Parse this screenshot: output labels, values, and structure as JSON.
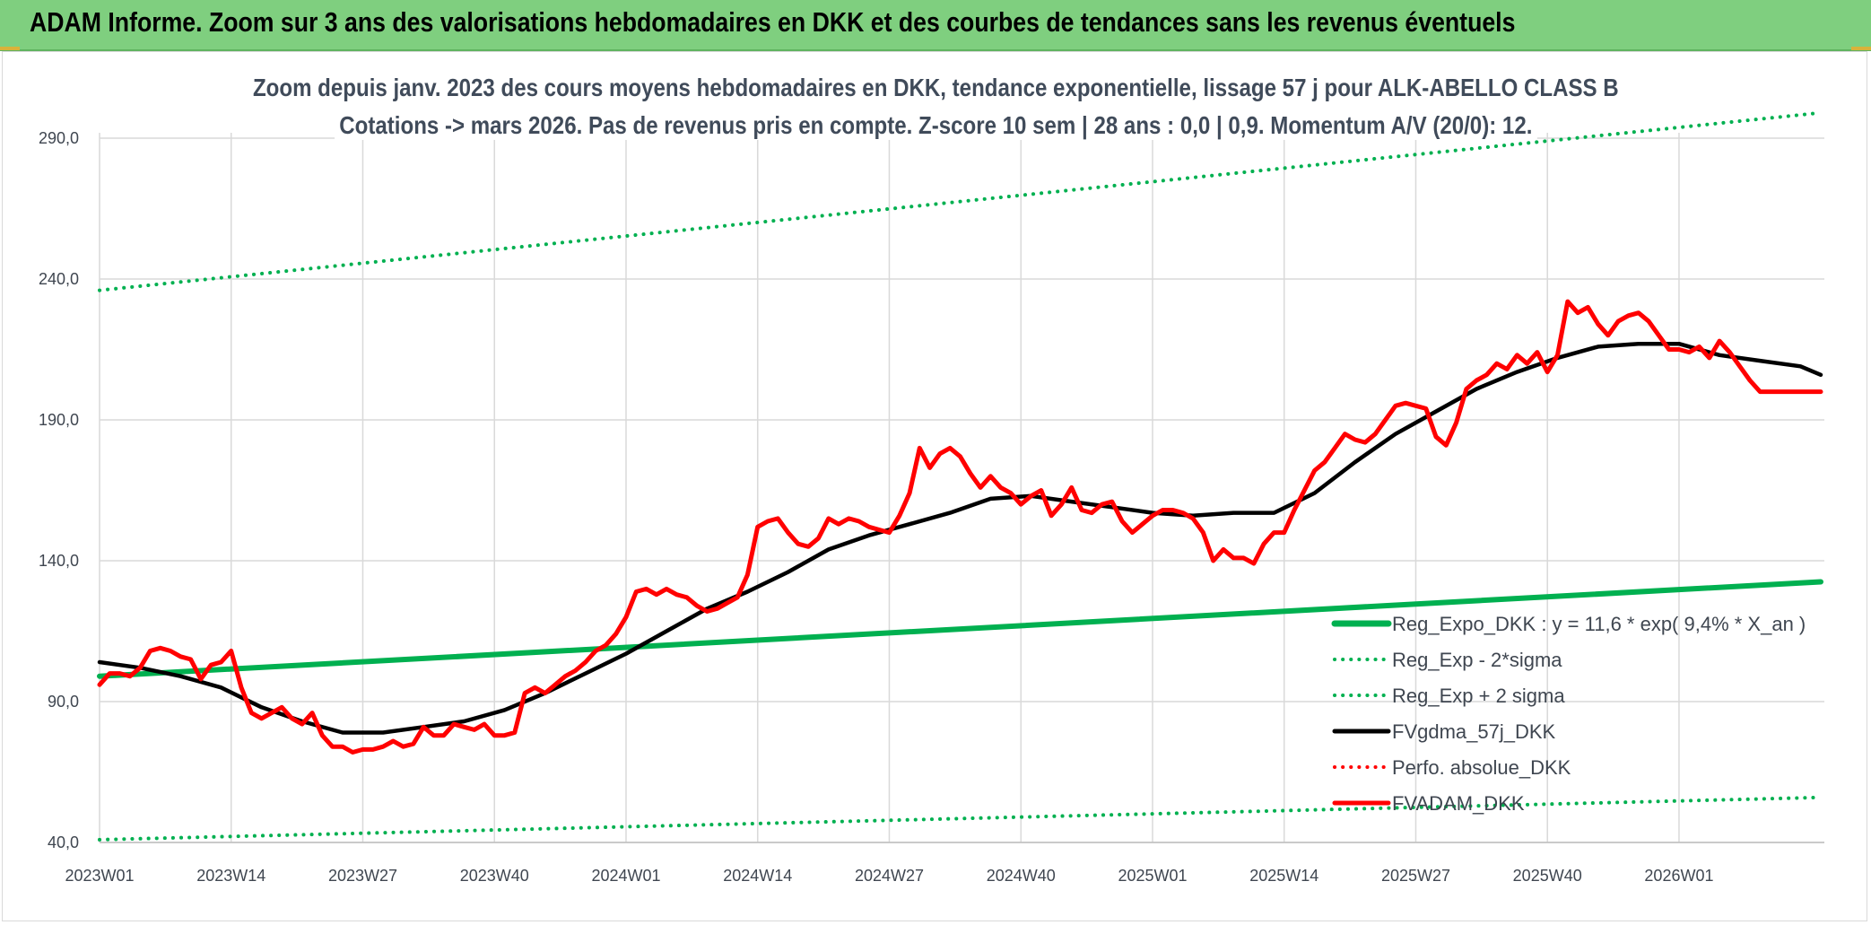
{
  "header": {
    "title": "ADAM Informe. Zoom sur 3 ans des valorisations hebdomadaires en DKK et des courbes de tendances sans les revenus éventuels"
  },
  "chart_data": {
    "type": "line",
    "title": "Zoom depuis janv. 2023 des cours moyens hebdomadaires en DKK, tendance exponentielle, lissage 57 j pour ALK-ABELLO CLASS B",
    "subtitle": "Cotations -> mars 2026. Pas de revenus pris en compte. Z-score 10 sem | 28 ans : 0,0 | 0,9. Momentum A/V (20/0): 12.",
    "xlabel": "",
    "ylabel": "",
    "ylim": [
      40,
      290
    ],
    "yticks": [
      "290,0",
      "240,0",
      "190,0",
      "140,0",
      "90,0",
      "40,0"
    ],
    "ytick_values": [
      290,
      240,
      190,
      140,
      90,
      40
    ],
    "xticks": [
      "2023W01",
      "2023W14",
      "2023W27",
      "2023W40",
      "2024W01",
      "2024W14",
      "2024W27",
      "2024W40",
      "2025W01",
      "2025W14",
      "2025W27",
      "2025W40",
      "2026W01"
    ],
    "xtick_weeks": [
      0,
      13,
      26,
      39,
      52,
      65,
      78,
      91,
      104,
      117,
      130,
      143,
      156
    ],
    "x_max_week": 170,
    "grid": true,
    "legend_position": "bottom-right",
    "series": [
      {
        "name": "Reg_Expo_DKK : y = 11,6 * exp( 9,4% *  X_an )",
        "color": "#00b050",
        "style": "solid-thick",
        "x": [
          0,
          170
        ],
        "y": [
          99,
          132.5
        ]
      },
      {
        "name": "Reg_Exp - 2*sigma",
        "color": "#00b050",
        "style": "dotted",
        "x": [
          0,
          170
        ],
        "y": [
          41,
          56
        ]
      },
      {
        "name": "Reg_Exp + 2 sigma",
        "color": "#00b050",
        "style": "dotted",
        "x": [
          0,
          170
        ],
        "y": [
          236,
          299
        ]
      },
      {
        "name": "FVgdma_57j_DKK",
        "color": "#000000",
        "style": "solid",
        "x": [
          0,
          4,
          8,
          12,
          16,
          20,
          24,
          28,
          32,
          36,
          40,
          44,
          48,
          52,
          56,
          60,
          64,
          68,
          72,
          76,
          80,
          84,
          88,
          92,
          96,
          100,
          104,
          108,
          112,
          116,
          120,
          124,
          128,
          132,
          136,
          140,
          144,
          148,
          152,
          156,
          160,
          164,
          168,
          170
        ],
        "y": [
          104,
          102,
          99,
          95,
          88,
          83,
          79,
          79,
          81,
          83,
          87,
          93,
          100,
          107,
          115,
          123,
          129,
          136,
          144,
          149,
          153,
          157,
          162,
          163,
          161,
          159,
          157,
          156,
          157,
          157,
          164,
          175,
          185,
          193,
          201,
          207,
          212,
          216,
          217,
          217,
          213,
          211,
          209,
          206
        ]
      },
      {
        "name": "Perfo. absolue_DKK",
        "color": "#ff0000",
        "style": "dotted",
        "x": [],
        "y": []
      },
      {
        "name": "FVADAM_DKK",
        "color": "#ff0000",
        "style": "solid-thick",
        "x": [
          0,
          1,
          2,
          3,
          4,
          5,
          6,
          7,
          8,
          9,
          10,
          11,
          12,
          13,
          14,
          15,
          16,
          17,
          18,
          19,
          20,
          21,
          22,
          23,
          24,
          25,
          26,
          27,
          28,
          29,
          30,
          31,
          32,
          33,
          34,
          35,
          36,
          37,
          38,
          39,
          40,
          41,
          42,
          43,
          44,
          45,
          46,
          47,
          48,
          49,
          50,
          51,
          52,
          53,
          54,
          55,
          56,
          57,
          58,
          59,
          60,
          61,
          62,
          63,
          64,
          65,
          66,
          67,
          68,
          69,
          70,
          71,
          72,
          73,
          74,
          75,
          76,
          77,
          78,
          79,
          80,
          81,
          82,
          83,
          84,
          85,
          86,
          87,
          88,
          89,
          90,
          91,
          92,
          93,
          94,
          95,
          96,
          97,
          98,
          99,
          100,
          101,
          102,
          103,
          104,
          105,
          106,
          107,
          108,
          109,
          110,
          111,
          112,
          113,
          114,
          115,
          116,
          117,
          118,
          119,
          120,
          121,
          122,
          123,
          124,
          125,
          126,
          127,
          128,
          129,
          130,
          131,
          132,
          133,
          134,
          135,
          136,
          137,
          138,
          139,
          140,
          141,
          142,
          143,
          144,
          145,
          146,
          147,
          148,
          149,
          150,
          151,
          152,
          153,
          154,
          155,
          156,
          157,
          158,
          159,
          160,
          161,
          162,
          163,
          164,
          165,
          166,
          167,
          168,
          169,
          170
        ],
        "y": [
          96,
          100,
          100,
          99,
          102,
          108,
          109,
          108,
          106,
          105,
          98,
          103,
          104,
          108,
          95,
          86,
          84,
          86,
          88,
          84,
          82,
          86,
          78,
          74,
          74,
          72,
          73,
          73,
          74,
          76,
          74,
          75,
          81,
          78,
          78,
          82,
          81,
          80,
          82,
          78,
          78,
          79,
          93,
          95,
          93,
          96,
          99,
          101,
          104,
          108,
          110,
          114,
          120,
          129,
          130,
          128,
          130,
          128,
          127,
          124,
          122,
          123,
          125,
          127,
          135,
          152,
          154,
          155,
          150,
          146,
          145,
          148,
          155,
          153,
          155,
          154,
          152,
          151,
          150,
          156,
          164,
          180,
          173,
          178,
          180,
          177,
          171,
          166,
          170,
          166,
          164,
          160,
          163,
          165,
          156,
          160,
          166,
          158,
          157,
          160,
          161,
          154,
          150,
          153,
          156,
          158,
          158,
          157,
          155,
          150,
          140,
          144,
          141,
          141,
          139,
          146,
          150,
          150,
          158,
          165,
          172,
          175,
          180,
          185,
          183,
          182,
          185,
          190,
          195,
          196,
          195,
          194,
          184,
          181,
          189,
          201,
          204,
          206,
          210,
          208,
          213,
          210,
          214,
          207,
          213,
          232,
          228,
          230,
          224,
          220,
          225,
          227,
          228,
          225,
          220,
          215,
          215,
          214,
          216,
          212,
          218,
          214,
          209,
          204,
          200,
          200,
          200,
          200,
          200,
          200,
          200
        ]
      }
    ]
  }
}
